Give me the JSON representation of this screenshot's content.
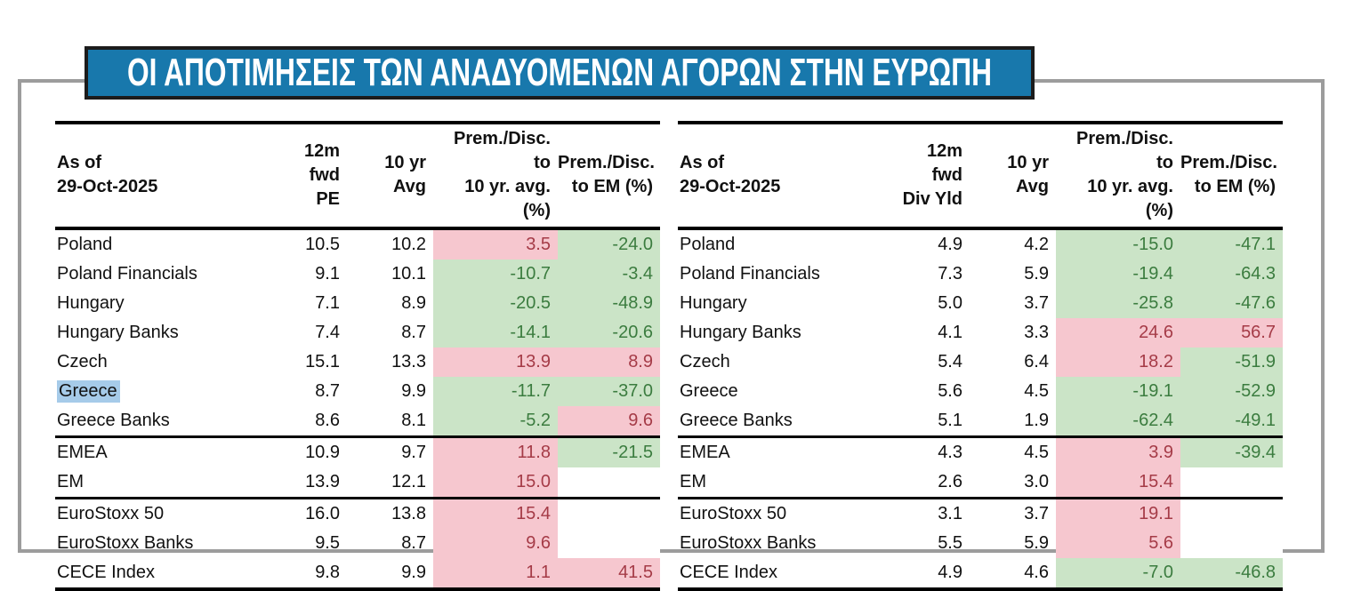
{
  "title": "ΟΙ ΑΠΟΤΙΜΗΣΕΙΣ ΤΩΝ ΑΝΑΔΥΟΜΕΝΩΝ ΑΓΟΡΩΝ ΣΤΗΝ ΕΥΡΩΠΗ",
  "colors": {
    "title_bg": "#1878AC",
    "title_border": "#1C1C1C",
    "frame_border": "#9C9C9C",
    "premium_bg": "#F6C7CF",
    "premium_text": "#A53B47",
    "discount_bg": "#CBE4C7",
    "discount_text": "#3B7C3F",
    "highlight_bg": "#A6CBE9",
    "rule_color": "#000000"
  },
  "tables": [
    {
      "id": "pe",
      "header": {
        "name": [
          "As of",
          "29-Oct-2025"
        ],
        "metric": [
          "12m fwd",
          "PE"
        ],
        "avg": [
          "10 yr",
          "Avg"
        ],
        "prem10": [
          "Prem./Disc. to",
          "10 yr. avg. (%)"
        ],
        "premem": [
          "Prem./Disc.",
          "to EM (%)"
        ]
      },
      "rows": [
        {
          "name": "Poland",
          "values": [
            "10.5",
            "10.2",
            "3.5",
            "-24.0"
          ],
          "types": [
            "plain",
            "plain",
            "premium",
            "discount"
          ]
        },
        {
          "name": "Poland Financials",
          "values": [
            "9.1",
            "10.1",
            "-10.7",
            "-3.4"
          ],
          "types": [
            "plain",
            "plain",
            "discount",
            "discount"
          ]
        },
        {
          "name": "Hungary",
          "values": [
            "7.1",
            "8.9",
            "-20.5",
            "-48.9"
          ],
          "types": [
            "plain",
            "plain",
            "discount",
            "discount"
          ]
        },
        {
          "name": "Hungary Banks",
          "values": [
            "7.4",
            "8.7",
            "-14.1",
            "-20.6"
          ],
          "types": [
            "plain",
            "plain",
            "discount",
            "discount"
          ]
        },
        {
          "name": "Czech",
          "values": [
            "15.1",
            "13.3",
            "13.9",
            "8.9"
          ],
          "types": [
            "plain",
            "plain",
            "premium",
            "premium"
          ]
        },
        {
          "name": "Greece",
          "values": [
            "8.7",
            "9.9",
            "-11.7",
            "-37.0"
          ],
          "types": [
            "plain",
            "plain",
            "discount",
            "discount"
          ],
          "highlight": true
        },
        {
          "name": "Greece Banks",
          "values": [
            "8.6",
            "8.1",
            "-5.2",
            "9.6"
          ],
          "types": [
            "plain",
            "plain",
            "discount",
            "premium"
          ],
          "rule_after": true
        },
        {
          "name": "EMEA",
          "values": [
            "10.9",
            "9.7",
            "11.8",
            "-21.5"
          ],
          "types": [
            "plain",
            "plain",
            "premium",
            "discount"
          ]
        },
        {
          "name": "EM",
          "values": [
            "13.9",
            "12.1",
            "15.0",
            ""
          ],
          "types": [
            "plain",
            "plain",
            "premium",
            "blank"
          ],
          "rule_after": true
        },
        {
          "name": "EuroStoxx 50",
          "values": [
            "16.0",
            "13.8",
            "15.4",
            ""
          ],
          "types": [
            "plain",
            "plain",
            "premium",
            "blank"
          ]
        },
        {
          "name": "EuroStoxx Banks",
          "values": [
            "9.5",
            "8.7",
            "9.6",
            ""
          ],
          "types": [
            "plain",
            "plain",
            "premium",
            "blank"
          ]
        },
        {
          "name": "CECE Index",
          "values": [
            "9.8",
            "9.9",
            "1.1",
            "41.5"
          ],
          "types": [
            "plain",
            "plain",
            "premium",
            "premium"
          ]
        }
      ]
    },
    {
      "id": "divyld",
      "header": {
        "name": [
          "As of",
          "29-Oct-2025"
        ],
        "metric": [
          "12m fwd",
          "Div Yld"
        ],
        "avg": [
          "10 yr",
          "Avg"
        ],
        "prem10": [
          "Prem./Disc. to",
          "10 yr. avg. (%)"
        ],
        "premem": [
          "Prem./Disc.",
          "to EM (%)"
        ]
      },
      "rows": [
        {
          "name": "Poland",
          "values": [
            "4.9",
            "4.2",
            "-15.0",
            "-47.1"
          ],
          "types": [
            "plain",
            "plain",
            "discount",
            "discount"
          ]
        },
        {
          "name": "Poland Financials",
          "values": [
            "7.3",
            "5.9",
            "-19.4",
            "-64.3"
          ],
          "types": [
            "plain",
            "plain",
            "discount",
            "discount"
          ]
        },
        {
          "name": "Hungary",
          "values": [
            "5.0",
            "3.7",
            "-25.8",
            "-47.6"
          ],
          "types": [
            "plain",
            "plain",
            "discount",
            "discount"
          ]
        },
        {
          "name": "Hungary Banks",
          "values": [
            "4.1",
            "3.3",
            "24.6",
            "56.7"
          ],
          "types": [
            "plain",
            "plain",
            "premium",
            "premium"
          ]
        },
        {
          "name": "Czech",
          "values": [
            "5.4",
            "6.4",
            "18.2",
            "-51.9"
          ],
          "types": [
            "plain",
            "plain",
            "premium",
            "discount"
          ]
        },
        {
          "name": "Greece",
          "values": [
            "5.6",
            "4.5",
            "-19.1",
            "-52.9"
          ],
          "types": [
            "plain",
            "plain",
            "discount",
            "discount"
          ]
        },
        {
          "name": "Greece Banks",
          "values": [
            "5.1",
            "1.9",
            "-62.4",
            "-49.1"
          ],
          "types": [
            "plain",
            "plain",
            "discount",
            "discount"
          ],
          "rule_after": true
        },
        {
          "name": "EMEA",
          "values": [
            "4.3",
            "4.5",
            "3.9",
            "-39.4"
          ],
          "types": [
            "plain",
            "plain",
            "premium",
            "discount"
          ]
        },
        {
          "name": "EM",
          "values": [
            "2.6",
            "3.0",
            "15.4",
            ""
          ],
          "types": [
            "plain",
            "plain",
            "premium",
            "blank"
          ],
          "rule_after": true
        },
        {
          "name": "EuroStoxx 50",
          "values": [
            "3.1",
            "3.7",
            "19.1",
            ""
          ],
          "types": [
            "plain",
            "plain",
            "premium",
            "blank"
          ]
        },
        {
          "name": "EuroStoxx Banks",
          "values": [
            "5.5",
            "5.9",
            "5.6",
            ""
          ],
          "types": [
            "plain",
            "plain",
            "premium",
            "blank"
          ]
        },
        {
          "name": "CECE Index",
          "values": [
            "4.9",
            "4.6",
            "-7.0",
            "-46.8"
          ],
          "types": [
            "plain",
            "plain",
            "discount",
            "discount"
          ]
        }
      ]
    }
  ]
}
